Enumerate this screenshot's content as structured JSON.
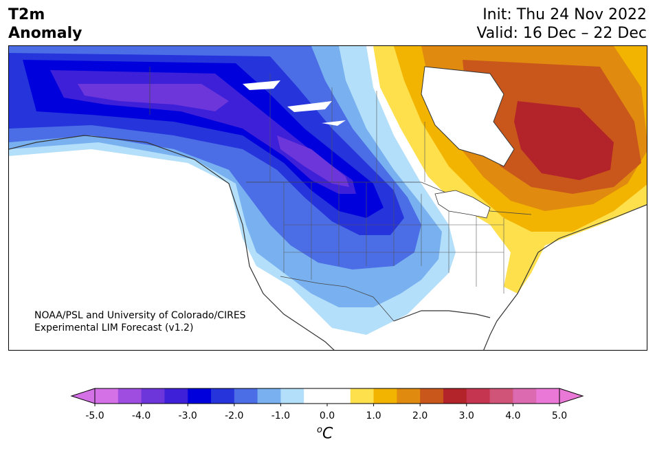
{
  "title": {
    "variable": "T2m",
    "subtitle": "Anomaly",
    "init": "Init: Thu 24 Nov 2022",
    "valid": "Valid: 16 Dec – 22 Dec"
  },
  "credit": {
    "line1": "NOAA/PSL and University of Colorado/CIRES",
    "line2": "Experimental LIM Forecast (v1.2)"
  },
  "colorbar": {
    "unit_sup": "o",
    "unit": "C",
    "levels": [
      -5.0,
      -4.5,
      -4.0,
      -3.5,
      -3.0,
      -2.5,
      -2.0,
      -1.5,
      -1.0,
      -0.5,
      0.5,
      1.0,
      1.5,
      2.0,
      2.5,
      3.0,
      3.5,
      4.0,
      4.5,
      5.0
    ],
    "colors": [
      "#d571e6",
      "#9e4de0",
      "#6c36db",
      "#3e20d8",
      "#0000dc",
      "#2634dc",
      "#4b6de6",
      "#79b1f0",
      "#b3dffa",
      "#ffffff",
      "#fde04c",
      "#f2b400",
      "#e08a10",
      "#c9571b",
      "#b3242a",
      "#c63550",
      "#d05378",
      "#dc6ab0",
      "#ea78d6"
    ],
    "under_color": "#d571e6",
    "over_color": "#ea78d6",
    "tick_labels": [
      "-5.0",
      "-4.0",
      "-3.0",
      "-2.0",
      "-1.0",
      "0.0",
      "1.0",
      "2.0",
      "3.0",
      "4.0",
      "5.0"
    ]
  },
  "map": {
    "region": "North America",
    "field": "2 m temperature anomaly",
    "cold_anomaly_max": "-4.0 to -3.5 over Alaska and western Canada",
    "warm_anomaly_max": "2.5 to 3.0 over Quebec"
  }
}
